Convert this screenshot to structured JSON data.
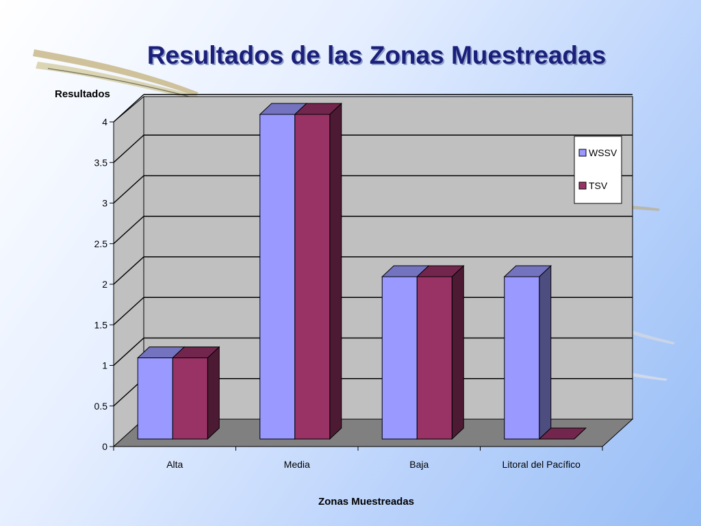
{
  "chart_data": {
    "type": "bar",
    "title": "Resultados de las Zonas Muestreadas",
    "ylabel": "Resultados",
    "xlabel": "Zonas Muestreadas",
    "categories": [
      "Alta",
      "Media",
      "Baja",
      "Litoral del Pacífico"
    ],
    "series": [
      {
        "name": "WSSV",
        "values": [
          1,
          4,
          2,
          2
        ],
        "color": "#9999ff"
      },
      {
        "name": "TSV",
        "values": [
          1,
          4,
          2,
          0
        ],
        "color": "#993366"
      }
    ],
    "ylim": [
      0,
      4
    ],
    "yticks": [
      "0",
      "0.5",
      "1",
      "1.5",
      "2",
      "2.5",
      "3",
      "3.5",
      "4"
    ],
    "grid": true,
    "legend": "right",
    "style": "3d-clustered"
  }
}
